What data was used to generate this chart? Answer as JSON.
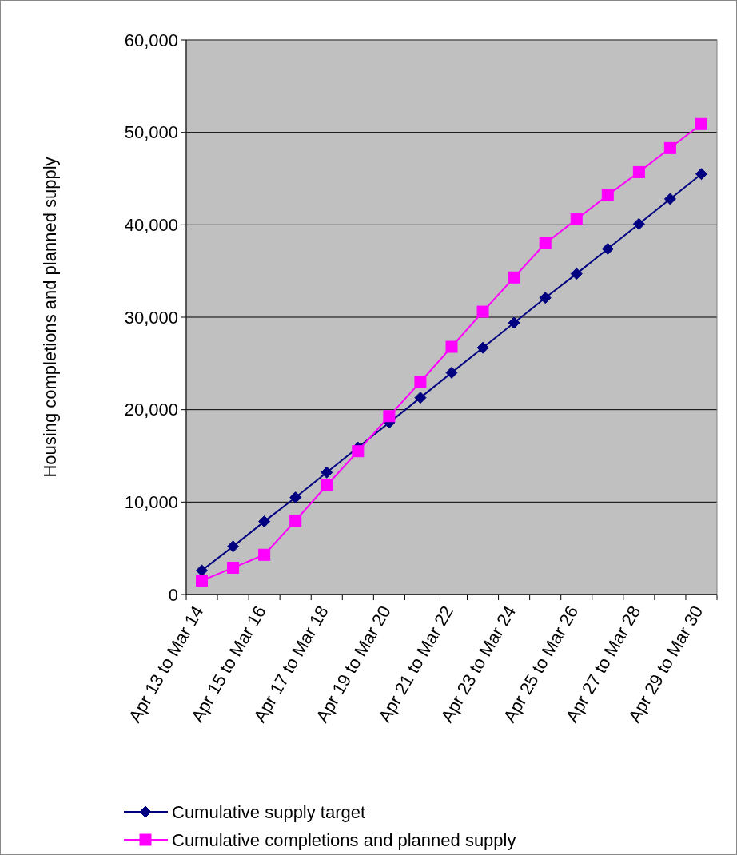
{
  "chart_data": {
    "type": "line",
    "ylabel": "Housing completions and planned supply",
    "categories": [
      "Apr 13 to Mar 14",
      null,
      "Apr 15 to Mar 16",
      null,
      "Apr 17 to Mar 18",
      null,
      "Apr 19 to Mar 20",
      null,
      "Apr 21 to Mar 22",
      null,
      "Apr 23 to Mar 24",
      null,
      "Apr 25 to Mar 26",
      null,
      "Apr 27 to Mar 28",
      null,
      "Apr 29 to Mar 30"
    ],
    "series": [
      {
        "name": "Cumulative supply target",
        "color": "#000080",
        "marker": "diamond",
        "values": [
          2600,
          5200,
          7900,
          10500,
          13200,
          15900,
          18600,
          21300,
          24000,
          26700,
          29400,
          32100,
          34700,
          37400,
          40100,
          42800,
          45500
        ]
      },
      {
        "name": "Cumulative completions and planned supply",
        "color": "#ff00ff",
        "marker": "square",
        "values": [
          1500,
          2900,
          4300,
          8000,
          11800,
          15500,
          19300,
          23000,
          26800,
          30600,
          34300,
          38000,
          40600,
          43200,
          45700,
          48300,
          50900
        ]
      }
    ],
    "ylim": [
      0,
      60000
    ],
    "yticks": [
      {
        "value": 0,
        "label": "0"
      },
      {
        "value": 10000,
        "label": "10,000"
      },
      {
        "value": 20000,
        "label": "20,000"
      },
      {
        "value": 30000,
        "label": "30,000"
      },
      {
        "value": 40000,
        "label": "40,000"
      },
      {
        "value": 50000,
        "label": "50,000"
      },
      {
        "value": 60000,
        "label": "60,000"
      }
    ],
    "grid": "y",
    "legend": "bottom",
    "line_style": "solid"
  }
}
